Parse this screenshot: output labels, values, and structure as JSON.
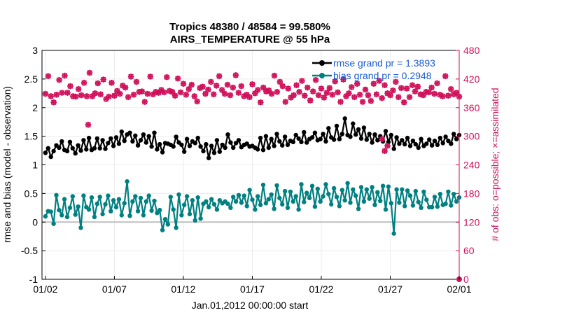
{
  "chart_data": {
    "type": "line",
    "title_line1": "Tropics 48380 / 48584 = 99.580%",
    "title_line2": "AIRS_TEMPERATURE @ 55 hPa",
    "xlabel": "Jan.01,2012 00:00:00 start",
    "ylabel_left": "rmse and bias (model - observation)",
    "ylabel_right": "# of obs: o=possible; ×=assimilated",
    "x_ticks": [
      "01/02",
      "01/07",
      "01/12",
      "01/17",
      "01/22",
      "01/27",
      "02/01"
    ],
    "x_tick_days": [
      1,
      6,
      11,
      16,
      21,
      26,
      31
    ],
    "x_range_days": [
      0.75,
      31
    ],
    "left_ylim": [
      -1,
      3
    ],
    "left_ticks": [
      "-1",
      "-0.5",
      "0",
      "0.5",
      "1",
      "1.5",
      "2",
      "2.5",
      "3"
    ],
    "right_ylim": [
      0,
      480
    ],
    "right_ticks": [
      "0",
      "60",
      "120",
      "180",
      "240",
      "300",
      "360",
      "420",
      "480"
    ],
    "zero_line": 0,
    "series": [
      {
        "name": "rmse",
        "legend": "rmse grand pr = 1.3893",
        "color": "#000000",
        "values": [
          1.21,
          1.29,
          1.14,
          1.24,
          1.34,
          1.3,
          1.41,
          1.26,
          1.24,
          1.4,
          1.29,
          1.2,
          1.34,
          1.25,
          1.43,
          1.27,
          1.47,
          1.26,
          1.29,
          1.46,
          1.29,
          1.43,
          1.28,
          1.38,
          1.46,
          1.33,
          1.48,
          1.37,
          1.58,
          1.42,
          1.53,
          1.56,
          1.41,
          1.51,
          1.34,
          1.43,
          1.53,
          1.39,
          1.5,
          1.32,
          1.56,
          1.27,
          1.36,
          1.22,
          1.38,
          1.37,
          1.35,
          1.32,
          1.49,
          1.39,
          1.35,
          1.23,
          1.45,
          1.33,
          1.41,
          1.38,
          1.47,
          1.32,
          1.24,
          1.36,
          1.12,
          1.33,
          1.21,
          1.43,
          1.23,
          1.35,
          1.3,
          1.53,
          1.39,
          1.3,
          1.38,
          1.43,
          1.31,
          1.35,
          1.37,
          1.32,
          1.33,
          1.3,
          1.27,
          1.47,
          1.26,
          1.5,
          1.3,
          1.45,
          1.33,
          1.54,
          1.41,
          1.34,
          1.49,
          1.35,
          1.42,
          1.4,
          1.52,
          1.46,
          1.4,
          1.57,
          1.39,
          1.45,
          1.48,
          1.56,
          1.43,
          1.45,
          1.54,
          1.41,
          1.64,
          1.48,
          1.44,
          1.68,
          1.45,
          1.54,
          1.81,
          1.52,
          1.49,
          1.72,
          1.53,
          1.62,
          1.46,
          1.65,
          1.44,
          1.54,
          1.39,
          1.53,
          1.43,
          1.5,
          1.41,
          1.59,
          1.4,
          1.52,
          1.28,
          1.48,
          1.37,
          1.43,
          1.36,
          1.47,
          1.33,
          1.42,
          1.36,
          1.3,
          1.45,
          1.33,
          1.37,
          1.44,
          1.34,
          1.42,
          1.35,
          1.47,
          1.38,
          1.49,
          1.42,
          1.37,
          1.54,
          1.45,
          1.52
        ]
      },
      {
        "name": "bias",
        "legend": "bias grand pr = 0.2948",
        "color": "#008080",
        "values": [
          0.1,
          0.19,
          0.18,
          -0.03,
          0.47,
          0.21,
          0.12,
          0.4,
          0.09,
          0.25,
          0.45,
          0.13,
          0.27,
          -0.1,
          0.46,
          0.26,
          0.22,
          0.43,
          0.09,
          0.32,
          0.44,
          0.14,
          0.31,
          0.46,
          0.19,
          0.38,
          0.26,
          0.4,
          0.12,
          0.33,
          0.71,
          0.11,
          0.36,
          0.45,
          0.19,
          0.42,
          0.12,
          0.36,
          0.46,
          0.2,
          0.37,
          0.16,
          0.21,
          -0.14,
          0.05,
          -0.04,
          0.44,
          0.22,
          -0.1,
          0.48,
          0.12,
          0.3,
          0.45,
          0.14,
          0.38,
          0.03,
          0.43,
          0.06,
          0.32,
          0.36,
          0.26,
          0.4,
          0.31,
          0.22,
          0.38,
          0.33,
          0.36,
          0.32,
          0.25,
          0.44,
          0.36,
          0.47,
          0.34,
          0.46,
          0.28,
          0.56,
          0.39,
          0.22,
          0.45,
          0.3,
          0.65,
          0.33,
          0.4,
          0.48,
          0.23,
          0.64,
          0.42,
          0.31,
          0.54,
          0.25,
          0.53,
          0.36,
          0.45,
          0.22,
          0.66,
          0.35,
          0.51,
          0.42,
          0.63,
          0.27,
          0.58,
          0.36,
          0.45,
          0.66,
          0.49,
          0.31,
          0.59,
          0.44,
          0.28,
          0.56,
          0.38,
          0.68,
          0.34,
          0.57,
          0.46,
          0.23,
          0.61,
          0.36,
          0.57,
          0.41,
          0.61,
          0.3,
          0.52,
          0.37,
          0.63,
          0.22,
          0.62,
          0.33,
          -0.2,
          0.57,
          0.34,
          0.57,
          0.28,
          0.55,
          0.46,
          0.29,
          0.54,
          0.35,
          0.25,
          0.53,
          0.39,
          0.26,
          0.26,
          0.44,
          0.27,
          0.49,
          0.3,
          0.32,
          0.53,
          0.29,
          0.49,
          0.36,
          0.43
        ]
      },
      {
        "name": "obs_count",
        "axis": "right",
        "color": "#d0105a",
        "values": [
          389,
          426,
          384,
          371,
          387,
          418,
          391,
          427,
          391,
          405,
          384,
          383,
          399,
          386,
          412,
          384,
          433,
          384,
          390,
          411,
          388,
          419,
          378,
          383,
          412,
          385,
          395,
          389,
          406,
          402,
          382,
          425,
          387,
          414,
          393,
          394,
          372,
          389,
          425,
          388,
          393,
          391,
          397,
          392,
          424,
          395,
          393,
          385,
          421,
          392,
          410,
          387,
          399,
          408,
          384,
          373,
          401,
          404,
          389,
          398,
          414,
          388,
          406,
          426,
          397,
          389,
          408,
          386,
          402,
          428,
          391,
          405,
          384,
          387,
          382,
          409,
          390,
          397,
          371,
          402,
          394,
          396,
          389,
          427,
          393,
          414,
          405,
          372,
          400,
          381,
          386,
          407,
          393,
          416,
          385,
          402,
          375,
          394,
          418,
          386,
          400,
          381,
          391,
          401,
          387,
          415,
          392,
          372,
          419,
          384,
          390,
          403,
          382,
          410,
          387,
          372,
          398,
          386,
          374,
          410,
          388,
          416,
          380,
          407,
          390,
          386,
          396,
          414,
          382,
          401,
          371,
          400,
          382,
          407,
          394,
          404,
          388,
          386,
          393,
          392,
          402,
          389,
          411,
          387,
          384,
          426,
          385,
          399,
          388,
          391,
          383
        ]
      },
      {
        "name": "obs_count_low",
        "axis": "right",
        "color": "#d0105a",
        "points": [
          [
            4.1,
            324
          ],
          [
            25.4,
            294
          ],
          [
            25.6,
            269
          ],
          [
            25.8,
            280
          ]
        ]
      }
    ]
  }
}
